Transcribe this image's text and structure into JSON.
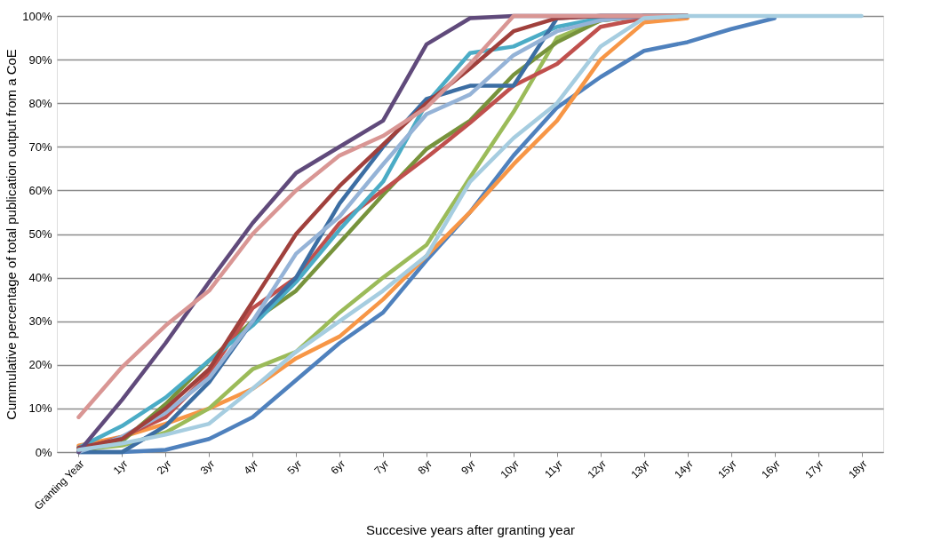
{
  "chart_data": {
    "type": "line",
    "xlabel": "Succesive years after granting year",
    "ylabel": "Cummulative percentage of total publication output from a CoE",
    "categories": [
      "Granting Year",
      "1yr",
      "2yr",
      "3yr",
      "4yr",
      "5yr",
      "6yr",
      "7yr",
      "8yr",
      "9yr",
      "10yr",
      "11yr",
      "12yr",
      "13yr",
      "14yr",
      "15yr",
      "16yr",
      "17yr",
      "18yr"
    ],
    "ylim": [
      0,
      100
    ],
    "yticks": [
      {
        "value": 0,
        "label": "0%"
      },
      {
        "value": 10,
        "label": "10%"
      },
      {
        "value": 20,
        "label": "20%"
      },
      {
        "value": 30,
        "label": "30%"
      },
      {
        "value": 40,
        "label": "40%"
      },
      {
        "value": 50,
        "label": "50%"
      },
      {
        "value": 60,
        "label": "60%"
      },
      {
        "value": 70,
        "label": "70%"
      },
      {
        "value": 80,
        "label": "80%"
      },
      {
        "value": 90,
        "label": "90%"
      },
      {
        "value": 100,
        "label": "100%"
      }
    ],
    "grid": "y",
    "legend": false,
    "marker": "none",
    "line_style": "solid",
    "series": [
      {
        "color": "#4f81bd",
        "values": [
          0,
          0,
          0.5,
          3,
          8,
          16.5,
          25,
          32,
          44,
          55,
          68,
          79,
          86,
          92,
          94,
          97,
          99.5,
          null,
          null
        ]
      },
      {
        "color": "#f79646",
        "values": [
          1.5,
          3.5,
          6.5,
          10,
          14.5,
          21.5,
          26.5,
          35,
          45,
          55,
          66,
          76,
          90,
          98.5,
          99.5,
          null,
          null,
          null,
          null
        ]
      },
      {
        "color": "#9bbb59",
        "values": [
          0.5,
          1.5,
          4.5,
          10,
          19,
          23,
          32,
          40,
          47.5,
          63,
          78,
          95,
          99,
          100,
          100,
          null,
          null,
          null,
          null
        ]
      },
      {
        "color": "#77933c",
        "values": [
          0,
          2.5,
          11,
          21,
          30,
          37,
          48,
          59,
          69.5,
          76,
          86.5,
          94,
          99,
          100,
          100,
          null,
          null,
          null,
          null
        ]
      },
      {
        "color": "#c0504d",
        "values": [
          0.5,
          3.5,
          8,
          18,
          33,
          40,
          52.5,
          60,
          67.5,
          75.5,
          84,
          89,
          97.5,
          99.5,
          100,
          null,
          null,
          null,
          null
        ]
      },
      {
        "color": "#4bacc6",
        "values": [
          1,
          6,
          12.5,
          21,
          29,
          39,
          51,
          62,
          80,
          91.5,
          93,
          97.5,
          99.5,
          100,
          100,
          null,
          null,
          null,
          null
        ]
      },
      {
        "color": "#3c6ea3",
        "values": [
          0,
          0,
          6,
          16,
          30,
          40,
          57,
          70,
          81,
          84,
          84,
          99.5,
          100,
          100,
          100,
          null,
          null,
          null,
          null
        ]
      },
      {
        "color": "#95b3d7",
        "values": [
          0,
          3.5,
          9,
          17,
          30,
          45.5,
          54,
          66,
          77.5,
          82,
          91,
          96.5,
          99,
          100,
          100,
          null,
          null,
          null,
          null
        ]
      },
      {
        "color": "#a0403c",
        "values": [
          1,
          3,
          10,
          19,
          34.5,
          50,
          61,
          70.5,
          80,
          88,
          96.5,
          99.5,
          100,
          100,
          100,
          null,
          null,
          null,
          null
        ]
      },
      {
        "color": "#604a7b",
        "values": [
          0,
          12,
          25,
          39,
          52.5,
          64,
          70,
          76,
          93.5,
          99.5,
          100,
          100,
          100,
          100,
          100,
          null,
          null,
          null,
          null
        ]
      },
      {
        "color": "#d99694",
        "values": [
          8,
          19.5,
          29,
          37,
          50,
          60,
          68,
          72.5,
          79,
          89,
          100,
          100,
          100,
          100,
          100,
          null,
          null,
          null,
          null
        ]
      },
      {
        "color": "#a6cde0",
        "values": [
          0.5,
          2,
          4,
          6.5,
          14.5,
          23,
          30,
          37,
          45,
          62,
          72,
          80,
          93,
          99.5,
          100,
          100,
          100,
          100,
          100
        ]
      }
    ]
  }
}
